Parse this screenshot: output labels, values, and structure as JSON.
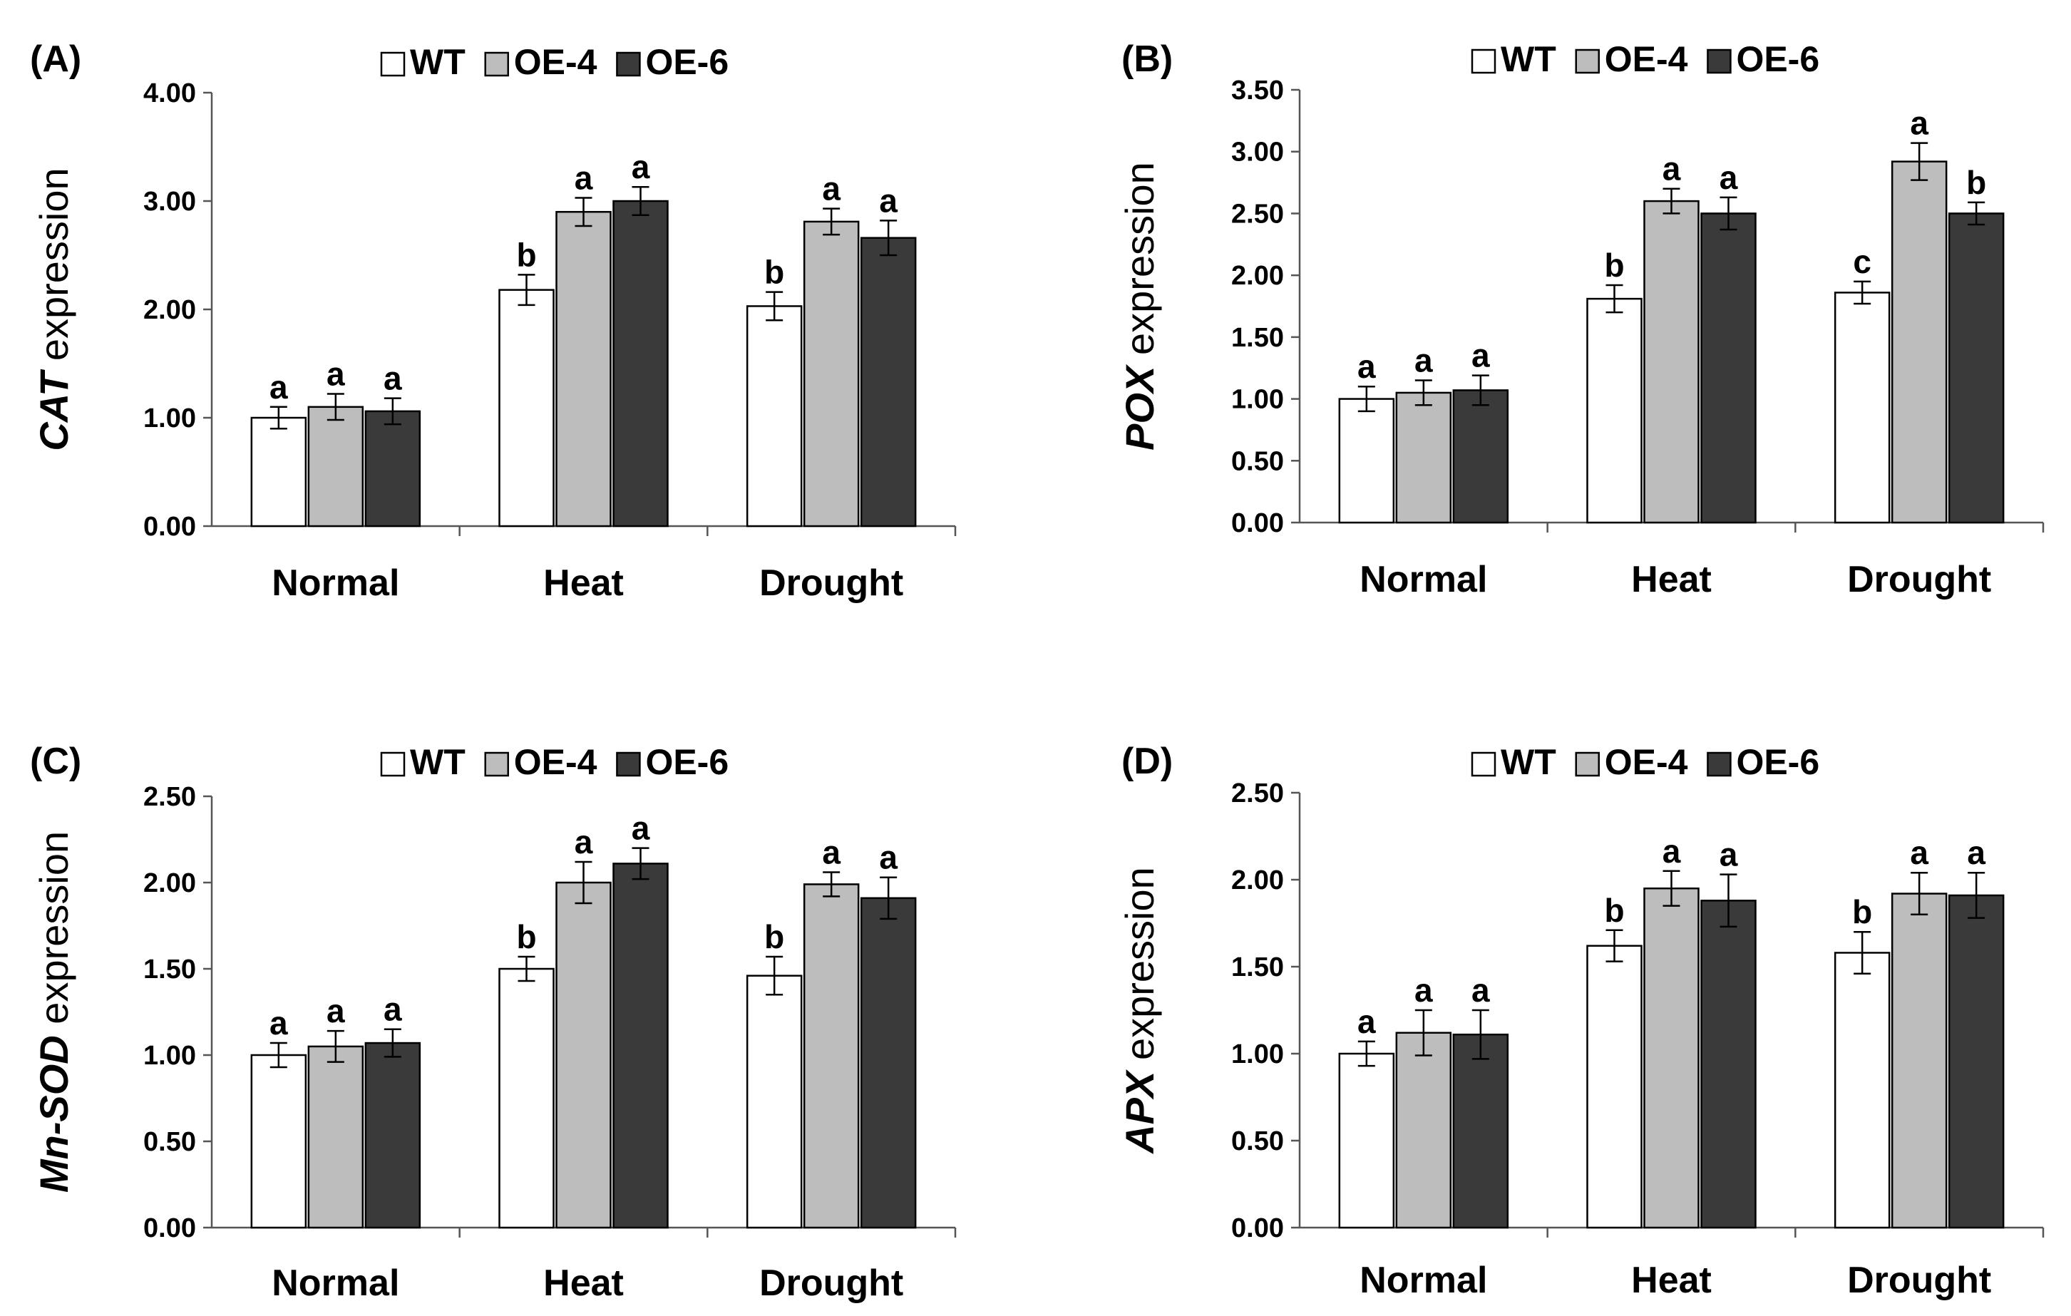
{
  "legend": [
    {
      "name": "WT",
      "color": "#ffffff"
    },
    {
      "name": "OE-4",
      "color": "#bdbdbd"
    },
    {
      "name": "OE-6",
      "color": "#3a3a3a"
    }
  ],
  "chart_data": [
    {
      "type": "bar",
      "panel_label": "(A)",
      "gene": "CAT",
      "ylabel_suffix": " expression",
      "ylim": [
        0,
        4
      ],
      "yticks": [
        "0.00",
        "1.00",
        "2.00",
        "3.00",
        "4.00"
      ],
      "ytick_values": [
        0,
        1,
        2,
        3,
        4
      ],
      "categories": [
        "Normal",
        "Heat",
        "Drought"
      ],
      "series": [
        {
          "name": "WT",
          "values": [
            1.0,
            2.18,
            2.03
          ],
          "errors": [
            0.1,
            0.14,
            0.13
          ],
          "letters": [
            "a",
            "b",
            "b"
          ]
        },
        {
          "name": "OE-4",
          "values": [
            1.1,
            2.9,
            2.81
          ],
          "errors": [
            0.12,
            0.13,
            0.12
          ],
          "letters": [
            "a",
            "a",
            "a"
          ]
        },
        {
          "name": "OE-6",
          "values": [
            1.06,
            3.0,
            2.66
          ],
          "errors": [
            0.12,
            0.13,
            0.16
          ],
          "letters": [
            "a",
            "a",
            "a"
          ]
        }
      ]
    },
    {
      "type": "bar",
      "panel_label": "(B)",
      "gene": "POX",
      "ylabel_suffix": " expression",
      "ylim": [
        0,
        3.5
      ],
      "yticks": [
        "0.00",
        "0.50",
        "1.00",
        "1.50",
        "2.00",
        "2.50",
        "3.00",
        "3.50"
      ],
      "ytick_values": [
        0,
        0.5,
        1,
        1.5,
        2,
        2.5,
        3,
        3.5
      ],
      "categories": [
        "Normal",
        "Heat",
        "Drought"
      ],
      "series": [
        {
          "name": "WT",
          "values": [
            1.0,
            1.81,
            1.86
          ],
          "errors": [
            0.1,
            0.11,
            0.09
          ],
          "letters": [
            "a",
            "b",
            "c"
          ]
        },
        {
          "name": "OE-4",
          "values": [
            1.05,
            2.6,
            2.92
          ],
          "errors": [
            0.1,
            0.1,
            0.15
          ],
          "letters": [
            "a",
            "a",
            "a"
          ]
        },
        {
          "name": "OE-6",
          "values": [
            1.07,
            2.5,
            2.5
          ],
          "errors": [
            0.12,
            0.13,
            0.09
          ],
          "letters": [
            "a",
            "a",
            "b"
          ]
        }
      ]
    },
    {
      "type": "bar",
      "panel_label": "(C)",
      "gene": "Mn-SOD",
      "ylabel_suffix": " expression",
      "ylim": [
        0,
        2.5
      ],
      "yticks": [
        "0.00",
        "0.50",
        "1.00",
        "1.50",
        "2.00",
        "2.50"
      ],
      "ytick_values": [
        0,
        0.5,
        1,
        1.5,
        2,
        2.5
      ],
      "categories": [
        "Normal",
        "Heat",
        "Drought"
      ],
      "series": [
        {
          "name": "WT",
          "values": [
            1.0,
            1.5,
            1.46
          ],
          "errors": [
            0.07,
            0.07,
            0.11
          ],
          "letters": [
            "a",
            "b",
            "b"
          ]
        },
        {
          "name": "OE-4",
          "values": [
            1.05,
            2.0,
            1.99
          ],
          "errors": [
            0.09,
            0.12,
            0.07
          ],
          "letters": [
            "a",
            "a",
            "a"
          ]
        },
        {
          "name": "OE-6",
          "values": [
            1.07,
            2.11,
            1.91
          ],
          "errors": [
            0.08,
            0.09,
            0.12
          ],
          "letters": [
            "a",
            "a",
            "a"
          ]
        }
      ]
    },
    {
      "type": "bar",
      "panel_label": "(D)",
      "gene": "APX",
      "ylabel_suffix": " expression",
      "ylim": [
        0,
        2.5
      ],
      "yticks": [
        "0.00",
        "0.50",
        "1.00",
        "1.50",
        "2.00",
        "2.50"
      ],
      "ytick_values": [
        0,
        0.5,
        1,
        1.5,
        2,
        2.5
      ],
      "categories": [
        "Normal",
        "Heat",
        "Drought"
      ],
      "series": [
        {
          "name": "WT",
          "values": [
            1.0,
            1.62,
            1.58
          ],
          "errors": [
            0.07,
            0.09,
            0.12
          ],
          "letters": [
            "a",
            "b",
            "b"
          ]
        },
        {
          "name": "OE-4",
          "values": [
            1.12,
            1.95,
            1.92
          ],
          "errors": [
            0.13,
            0.1,
            0.12
          ],
          "letters": [
            "a",
            "a",
            "a"
          ]
        },
        {
          "name": "OE-6",
          "values": [
            1.11,
            1.88,
            1.91
          ],
          "errors": [
            0.14,
            0.15,
            0.13
          ],
          "letters": [
            "a",
            "a",
            "a"
          ]
        }
      ]
    }
  ]
}
